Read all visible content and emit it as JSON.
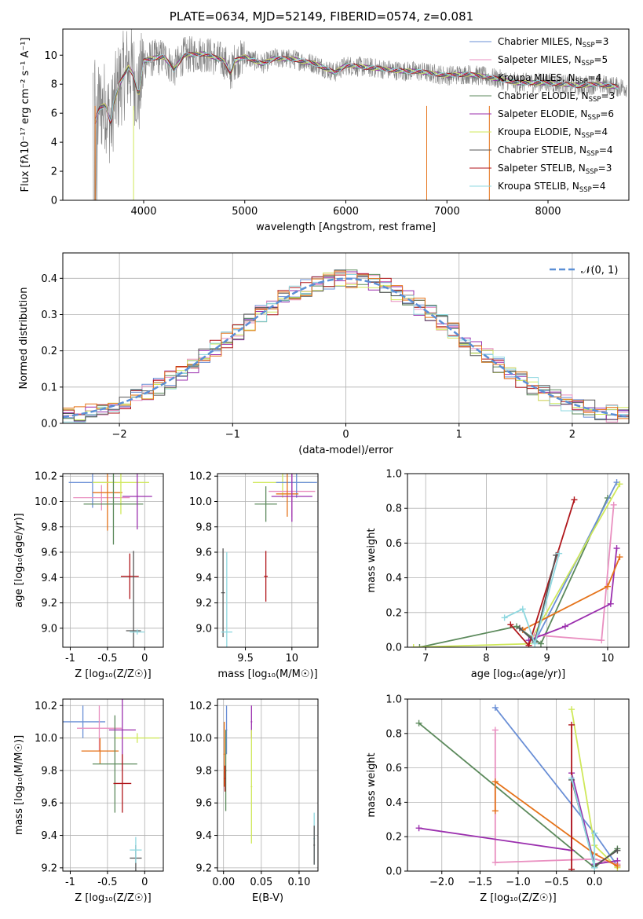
{
  "page": {
    "title": "PLATE=0634, MJD=52149, FIBERID=0574, z=0.081"
  },
  "colors": {
    "chabrier_miles": "#6a8fd6",
    "salpeter_miles": "#e98fc0",
    "kroupa_miles": "#7f7f7f",
    "chabrier_elodie": "#5c8a5c",
    "salpeter_elodie": "#9b2fae",
    "kroupa_elodie": "#cfe85a",
    "chabrier_stelib": "#555555",
    "salpeter_stelib": "#b0161b",
    "kroupa_stelib": "#8fd8e0",
    "orange": "#e5731a",
    "normal": "#5b8fd6",
    "data": "#808080",
    "grid": "#b0b0b0"
  },
  "chart_data": [
    {
      "id": "spectrum",
      "type": "line",
      "xlabel": "wavelength [Angstrom, rest frame]",
      "ylabel": "Flux [fλ10⁻¹⁷ erg cm⁻² s⁻¹ A⁻¹]",
      "xlim": [
        3200,
        8800
      ],
      "ylim": [
        0,
        11.8
      ],
      "xticks": [
        4000,
        5000,
        6000,
        7000,
        8000
      ],
      "yticks": [
        0,
        2,
        4,
        6,
        8,
        10
      ],
      "grid": false,
      "legend_position": "right",
      "legend": [
        {
          "label": "Chabrier MILES, N",
          "sub": "SSP",
          "n": "=3",
          "color": "#6a8fd6"
        },
        {
          "label": "Salpeter MILES, N",
          "sub": "SSP",
          "n": "=5",
          "color": "#e98fc0"
        },
        {
          "label": "Kroupa MILES, N",
          "sub": "SSP",
          "n": "=4",
          "color": "#7f7f7f"
        },
        {
          "label": "Chabrier ELODIE, N",
          "sub": "SSP",
          "n": "=3",
          "color": "#5c8a5c"
        },
        {
          "label": "Salpeter ELODIE, N",
          "sub": "SSP",
          "n": "=6",
          "color": "#9b2fae"
        },
        {
          "label": "Kroupa ELODIE, N",
          "sub": "SSP",
          "n": "=4",
          "color": "#cfe85a"
        },
        {
          "label": "Chabrier STELIB, N",
          "sub": "SSP",
          "n": "=4",
          "color": "#555555"
        },
        {
          "label": "Salpeter STELIB, N",
          "sub": "SSP",
          "n": "=3",
          "color": "#b0161b"
        },
        {
          "label": "Kroupa STELIB, N",
          "sub": "SSP",
          "n": "=4",
          "color": "#8fd8e0"
        }
      ],
      "continuum": [
        [
          3520,
          5.4
        ],
        [
          3560,
          6.3
        ],
        [
          3620,
          6.6
        ],
        [
          3680,
          5.2
        ],
        [
          3700,
          6.6
        ],
        [
          3760,
          8.0
        ],
        [
          3850,
          9.2
        ],
        [
          3900,
          8.6
        ],
        [
          3950,
          7.2
        ],
        [
          4000,
          9.6
        ],
        [
          4100,
          9.8
        ],
        [
          4200,
          9.9
        ],
        [
          4300,
          9.0
        ],
        [
          4400,
          10.0
        ],
        [
          4600,
          10.1
        ],
        [
          4800,
          9.6
        ],
        [
          4860,
          8.7
        ],
        [
          4900,
          9.6
        ],
        [
          5000,
          9.9
        ],
        [
          5175,
          9.4
        ],
        [
          5300,
          9.8
        ],
        [
          5500,
          9.7
        ],
        [
          5700,
          9.4
        ],
        [
          5890,
          8.8
        ],
        [
          6000,
          9.3
        ],
        [
          6300,
          9.1
        ],
        [
          6563,
          8.9
        ],
        [
          6700,
          8.9
        ],
        [
          7000,
          8.6
        ],
        [
          7200,
          8.7
        ],
        [
          7400,
          8.5
        ],
        [
          7700,
          8.1
        ],
        [
          8000,
          8.1
        ],
        [
          8300,
          7.9
        ],
        [
          8500,
          8.0
        ],
        [
          8700,
          7.8
        ]
      ]
    },
    {
      "id": "residuals",
      "type": "histogram",
      "xlabel": "(data-model)/error",
      "ylabel": "Normed distribution",
      "xlim": [
        -2.5,
        2.5
      ],
      "ylim": [
        0,
        0.47
      ],
      "xticks": [
        -2,
        -1,
        0,
        1,
        2
      ],
      "xticklabels": [
        "−2",
        "−1",
        "0",
        "1",
        "2"
      ],
      "yticks": [
        0.0,
        0.1,
        0.2,
        0.3,
        0.4
      ],
      "grid": true,
      "legend_position": "top-right",
      "legend_label": "𝒩(0, 1)",
      "bin_width": 0.1
    },
    {
      "id": "age_vs_Z",
      "type": "errorbar",
      "xlabel": "Z [log₁₀(Z/Z☉)]",
      "ylabel": "age  [log₁₀(age/yr)]",
      "xlim": [
        -1.1,
        0.25
      ],
      "ylim": [
        8.85,
        10.22
      ],
      "xticks": [
        -1.0,
        -0.5,
        0.0
      ],
      "yticks": [
        9.0,
        9.2,
        9.4,
        9.6,
        9.8,
        10.0,
        10.2
      ],
      "grid": true,
      "points": [
        {
          "x": -0.7,
          "xerr": 0.32,
          "y": 10.15,
          "yerr": 0.2,
          "color": "#6a8fd6"
        },
        {
          "x": -0.58,
          "xerr": 0.38,
          "y": 10.03,
          "yerr": 0.1,
          "color": "#e98fc0"
        },
        {
          "x": -0.5,
          "xerr": 0.2,
          "y": 10.07,
          "yerr": 0.3,
          "color": "#e5731a"
        },
        {
          "x": -0.32,
          "xerr": 0.38,
          "y": 10.15,
          "yerr": 0.25,
          "color": "#cfe85a"
        },
        {
          "x": -0.42,
          "xerr": 0.4,
          "y": 9.98,
          "yerr": 0.32,
          "color": "#5c8a5c"
        },
        {
          "x": -0.1,
          "xerr": 0.2,
          "y": 10.04,
          "yerr": 0.26,
          "color": "#9b2fae"
        },
        {
          "x": -0.2,
          "xerr": 0.12,
          "y": 9.41,
          "yerr": 0.18,
          "color": "#b0161b"
        },
        {
          "x": -0.15,
          "xerr": 0.1,
          "y": 8.98,
          "yerr": 0.63,
          "color": "#555555"
        },
        {
          "x": -0.1,
          "xerr": 0.1,
          "y": 8.97,
          "yerr": 0.02,
          "color": "#8fd8e0"
        }
      ]
    },
    {
      "id": "age_vs_mass",
      "type": "errorbar",
      "xlabel": "mass [log₁₀(M/M☉)]",
      "ylabel": "",
      "xlim": [
        9.2,
        10.28
      ],
      "ylim": [
        8.85,
        10.22
      ],
      "xticks": [
        9.5,
        10.0
      ],
      "yticks": [
        9.0,
        9.2,
        9.4,
        9.6,
        9.8,
        10.0,
        10.2
      ],
      "grid": true,
      "points": [
        {
          "x": 9.9,
          "xerr": 0.32,
          "y": 10.15,
          "yerr": 0.12,
          "color": "#cfe85a"
        },
        {
          "x": 10.0,
          "xerr": 0.25,
          "y": 10.08,
          "yerr": 0.2,
          "color": "#e98fc0"
        },
        {
          "x": 10.05,
          "xerr": 0.22,
          "y": 10.15,
          "yerr": 0.12,
          "color": "#6a8fd6"
        },
        {
          "x": 9.95,
          "xerr": 0.12,
          "y": 10.06,
          "yerr": 0.18,
          "color": "#e5731a"
        },
        {
          "x": 10.0,
          "xerr": 0.22,
          "y": 10.04,
          "yerr": 0.2,
          "color": "#9b2fae"
        },
        {
          "x": 9.72,
          "xerr": 0.12,
          "y": 9.98,
          "yerr": 0.14,
          "color": "#5c8a5c"
        },
        {
          "x": 9.72,
          "xerr": 0.02,
          "y": 9.41,
          "yerr": 0.2,
          "color": "#b0161b"
        },
        {
          "x": 9.26,
          "xerr": 0.02,
          "y": 9.28,
          "yerr": 0.35,
          "color": "#555555"
        },
        {
          "x": 9.3,
          "xerr": 0.06,
          "y": 8.97,
          "yerr": 0.63,
          "color": "#8fd8e0"
        }
      ]
    },
    {
      "id": "weight_vs_age",
      "type": "line",
      "xlabel": "age  [log₁₀(age/yr)]",
      "ylabel": "mass weight",
      "xlim": [
        6.7,
        10.35
      ],
      "ylim": [
        0,
        1.0
      ],
      "xticks": [
        7,
        8,
        9,
        10
      ],
      "yticks": [
        0.0,
        0.2,
        0.4,
        0.6,
        0.8,
        1.0
      ],
      "grid": true,
      "series": [
        {
          "color": "#5c8a5c",
          "points": [
            [
              6.9,
              0.0
            ],
            [
              8.5,
              0.12
            ],
            [
              8.9,
              0.02
            ],
            [
              10.0,
              0.86
            ]
          ]
        },
        {
          "color": "#6a8fd6",
          "points": [
            [
              8.8,
              0.03
            ],
            [
              10.15,
              0.95
            ]
          ]
        },
        {
          "color": "#cfe85a",
          "points": [
            [
              6.8,
              0.0
            ],
            [
              8.7,
              0.02
            ],
            [
              10.2,
              0.94
            ]
          ]
        },
        {
          "color": "#e98fc0",
          "points": [
            [
              8.8,
              0.07
            ],
            [
              9.9,
              0.04
            ],
            [
              10.1,
              0.82
            ]
          ]
        },
        {
          "color": "#9b2fae",
          "points": [
            [
              8.7,
              0.04
            ],
            [
              9.3,
              0.12
            ],
            [
              10.05,
              0.25
            ],
            [
              10.15,
              0.57
            ]
          ]
        },
        {
          "color": "#e5731a",
          "points": [
            [
              8.6,
              0.1
            ],
            [
              10.0,
              0.35
            ],
            [
              10.2,
              0.52
            ]
          ]
        },
        {
          "color": "#b0161b",
          "points": [
            [
              8.4,
              0.13
            ],
            [
              8.7,
              0.01
            ],
            [
              9.45,
              0.85
            ]
          ]
        },
        {
          "color": "#555555",
          "points": [
            [
              8.55,
              0.11
            ],
            [
              8.8,
              0.03
            ],
            [
              9.15,
              0.53
            ]
          ]
        },
        {
          "color": "#8fd8e0",
          "points": [
            [
              8.3,
              0.17
            ],
            [
              8.6,
              0.22
            ],
            [
              8.8,
              0.02
            ],
            [
              9.2,
              0.54
            ]
          ]
        }
      ]
    },
    {
      "id": "mass_vs_Z",
      "type": "errorbar",
      "xlabel": "Z [log₁₀(Z/Z☉)]",
      "ylabel": "mass [log₁₀(M/M☉)]",
      "xlim": [
        -1.1,
        0.25
      ],
      "ylim": [
        9.18,
        10.24
      ],
      "xticks": [
        -1.0,
        -0.5,
        0.0
      ],
      "yticks": [
        9.2,
        9.4,
        9.6,
        9.8,
        10.0,
        10.2
      ],
      "grid": true,
      "points": [
        {
          "x": -0.83,
          "xerr": 0.3,
          "y": 10.1,
          "yerr": 0.1,
          "color": "#6a8fd6"
        },
        {
          "x": -0.61,
          "xerr": 0.3,
          "y": 10.06,
          "yerr": 0.14,
          "color": "#e98fc0"
        },
        {
          "x": -0.6,
          "xerr": 0.25,
          "y": 9.92,
          "yerr": 0.08,
          "color": "#e5731a"
        },
        {
          "x": -0.1,
          "xerr": 0.3,
          "y": 10.0,
          "yerr": 0.03,
          "color": "#cfe85a"
        },
        {
          "x": -0.4,
          "xerr": 0.3,
          "y": 9.84,
          "yerr": 0.3,
          "color": "#5c8a5c"
        },
        {
          "x": -0.3,
          "xerr": 0.18,
          "y": 10.05,
          "yerr": 0.25,
          "color": "#9b2fae"
        },
        {
          "x": -0.3,
          "xerr": 0.12,
          "y": 9.72,
          "yerr": 0.18,
          "color": "#b0161b"
        },
        {
          "x": -0.12,
          "xerr": 0.08,
          "y": 9.26,
          "yerr": 0.08,
          "color": "#555555"
        },
        {
          "x": -0.12,
          "xerr": 0.08,
          "y": 9.31,
          "yerr": 0.08,
          "color": "#8fd8e0"
        }
      ]
    },
    {
      "id": "mass_vs_EBV",
      "type": "errorbar",
      "xlabel": "E(B-V)",
      "ylabel": "",
      "xlim": [
        -0.008,
        0.125
      ],
      "ylim": [
        9.18,
        10.24
      ],
      "xticks": [
        0.0,
        0.05,
        0.1
      ],
      "xticklabels": [
        "0.00",
        "0.05",
        "0.10"
      ],
      "yticks": [
        9.2,
        9.4,
        9.6,
        9.8,
        10.0,
        10.2
      ],
      "grid": true,
      "points": [
        {
          "x": 0.001,
          "xerr": 0.001,
          "y": 9.9,
          "yerr": 0.2,
          "color": "#e5731a"
        },
        {
          "x": 0.004,
          "xerr": 0.001,
          "y": 10.05,
          "yerr": 0.15,
          "color": "#6a8fd6"
        },
        {
          "x": 0.003,
          "xerr": 0.001,
          "y": 9.8,
          "yerr": 0.25,
          "color": "#5c8a5c"
        },
        {
          "x": 0.002,
          "xerr": 0.001,
          "y": 9.75,
          "yerr": 0.08,
          "color": "#b0161b"
        },
        {
          "x": 0.037,
          "xerr": 0.001,
          "y": 10.1,
          "yerr": 0.1,
          "color": "#9b2fae"
        },
        {
          "x": 0.037,
          "xerr": 0.001,
          "y": 9.7,
          "yerr": 0.35,
          "color": "#cfe85a"
        },
        {
          "x": 0.12,
          "xerr": 0.001,
          "y": 9.38,
          "yerr": 0.16,
          "color": "#8fd8e0"
        },
        {
          "x": 0.12,
          "xerr": 0.001,
          "y": 9.34,
          "yerr": 0.12,
          "color": "#555555"
        }
      ]
    },
    {
      "id": "weight_vs_Z",
      "type": "line",
      "xlabel": "Z [log₁₀(Z/Z☉)]",
      "ylabel": "mass weight",
      "xlim": [
        -2.45,
        0.45
      ],
      "ylim": [
        0,
        1.0
      ],
      "xticks": [
        -2.0,
        -1.5,
        -1.0,
        -0.5,
        0.0
      ],
      "xticklabels": [
        "−2.0",
        "−1.5",
        "−1.0",
        "−0.5",
        "0.0"
      ],
      "yticks": [
        0.0,
        0.2,
        0.4,
        0.6,
        0.8,
        1.0
      ],
      "grid": true,
      "series": [
        {
          "color": "#5c8a5c",
          "points": [
            [
              -2.3,
              0.86
            ],
            [
              0.0,
              0.02
            ],
            [
              0.3,
              0.13
            ]
          ]
        },
        {
          "color": "#6a8fd6",
          "points": [
            [
              -1.3,
              0.95
            ],
            [
              0.0,
              0.22
            ],
            [
              0.3,
              0.03
            ]
          ]
        },
        {
          "color": "#cfe85a",
          "points": [
            [
              -0.3,
              0.94
            ],
            [
              0.0,
              0.15
            ],
            [
              0.3,
              0.02
            ]
          ]
        },
        {
          "color": "#e98fc0",
          "points": [
            [
              -1.3,
              0.82
            ],
            [
              -1.3,
              0.05
            ],
            [
              0.0,
              0.07
            ],
            [
              0.3,
              0.04
            ]
          ]
        },
        {
          "color": "#9b2fae",
          "points": [
            [
              -2.3,
              0.25
            ],
            [
              -0.3,
              0.12
            ],
            [
              -0.3,
              0.57
            ],
            [
              0.0,
              0.04
            ],
            [
              0.3,
              0.06
            ]
          ]
        },
        {
          "color": "#e5731a",
          "points": [
            [
              -1.3,
              0.35
            ],
            [
              -1.3,
              0.52
            ],
            [
              0.0,
              0.1
            ],
            [
              0.3,
              0.03
            ]
          ]
        },
        {
          "color": "#b0161b",
          "points": [
            [
              -0.3,
              0.85
            ],
            [
              -0.3,
              0.01
            ]
          ]
        },
        {
          "color": "#555555",
          "points": [
            [
              -0.3,
              0.53
            ],
            [
              0.0,
              0.03
            ],
            [
              0.3,
              0.12
            ]
          ]
        },
        {
          "color": "#8fd8e0",
          "points": [
            [
              0.0,
              0.22
            ],
            [
              0.0,
              0.02
            ],
            [
              -0.3,
              0.54
            ]
          ]
        }
      ]
    }
  ]
}
